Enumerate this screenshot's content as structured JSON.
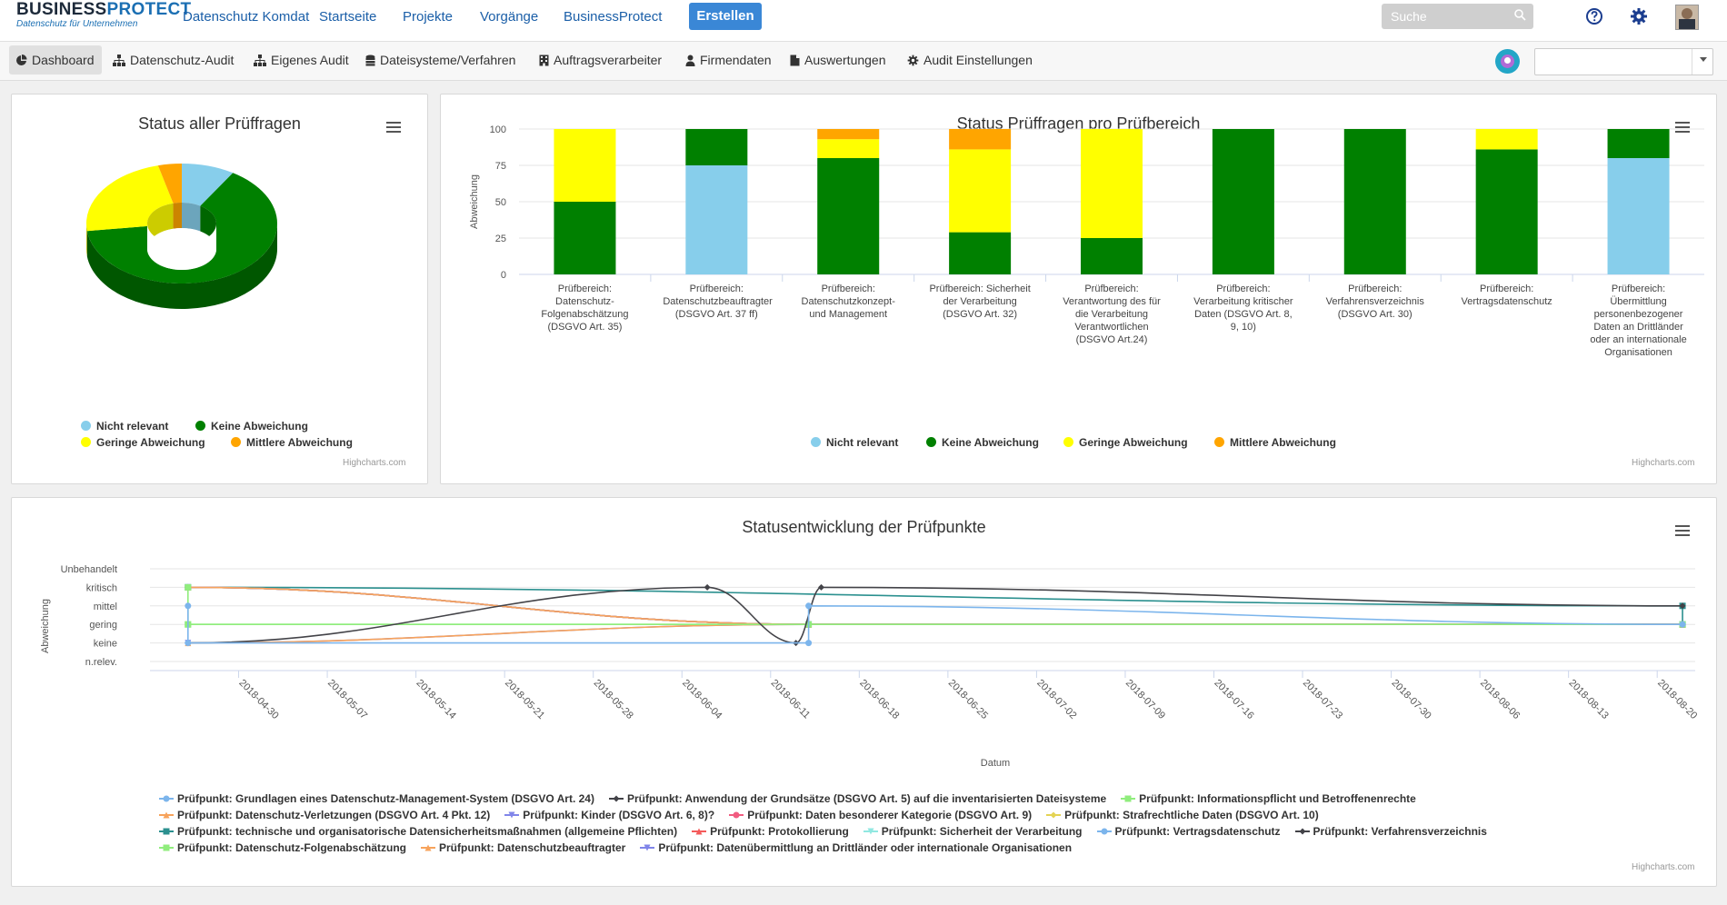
{
  "app": {
    "logo_main_a": "BUSINESS",
    "logo_main_b": "PROTECT",
    "logo_sub": "Datenschutz für Unternehmen"
  },
  "topnav": [
    "Datenschutz Komdat",
    "Startseite",
    "Projekte",
    "Vorgänge",
    "BusinessProtect"
  ],
  "create_label": "Erstellen",
  "search_placeholder": "Suche",
  "subnav": [
    "Dashboard",
    "Datenschutz-Audit",
    "Eigenes Audit",
    "Dateisysteme/Verfahren",
    "Auftragsverarbeiter",
    "Firmendaten",
    "Auswertungen",
    "Audit Einstellungen"
  ],
  "icons": {
    "help": "help-circle-icon",
    "settings": "gear-icon",
    "user": "user-avatar",
    "search": "search-icon"
  },
  "colors": {
    "nicht_relevant": "#87ceeb",
    "keine": "#008000",
    "geringe": "#ffff00",
    "mittlere": "#ffa500",
    "accent": "#3a87d6"
  },
  "credits": "Highcharts.com",
  "chart_data": [
    {
      "type": "pie",
      "title": "Status aller Prüffragen",
      "labels": [
        "Nicht relevant",
        "Keine Abweichung",
        "Geringe Abweichung",
        "Mittlere Abweichung"
      ],
      "values": [
        9,
        64,
        23,
        4
      ],
      "legend": [
        "Nicht relevant",
        "Keine Abweichung",
        "Geringe Abweichung",
        "Mittlere Abweichung"
      ]
    },
    {
      "type": "bar",
      "stacked": true,
      "title": "Status Prüffragen pro Prüfbereich",
      "ylabel": "Abweichung",
      "ylim": [
        0,
        100
      ],
      "yticks": [
        0,
        25,
        50,
        75,
        100
      ],
      "categories": [
        "Prüfbereich: Datenschutz-Folgenabschätzung (DSGVO Art. 35)",
        "Prüfbereich: Datenschutzbeauftragter (DSGVO Art. 37 ff)",
        "Prüfbereich: Datenschutzkonzept- und Management",
        "Prüfbereich: Sicherheit der Verarbeitung (DSGVO Art. 32)",
        "Prüfbereich: Verantwortung des für die Verarbeitung Verantwortlichen (DSGVO Art.24)",
        "Prüfbereich: Verarbeitung kritischer Daten (DSGVO Art. 8, 9, 10)",
        "Prüfbereich: Verfahrensverzeichnis (DSGVO Art. 30)",
        "Prüfbereich: Vertragsdatenschutz",
        "Prüfbereich: Übermittlung personenbezogener Daten an Drittländer oder an internationale Organisationen"
      ],
      "series": [
        {
          "name": "Nicht relevant",
          "values": [
            0,
            75,
            0,
            0,
            0,
            0,
            0,
            0,
            80
          ]
        },
        {
          "name": "Keine Abweichung",
          "values": [
            50,
            25,
            80,
            29,
            25,
            100,
            100,
            86,
            20
          ]
        },
        {
          "name": "Geringe Abweichung",
          "values": [
            50,
            0,
            13,
            57,
            75,
            0,
            0,
            14,
            0
          ]
        },
        {
          "name": "Mittlere Abweichung",
          "values": [
            0,
            0,
            7,
            14,
            0,
            0,
            0,
            0,
            0
          ]
        }
      ]
    },
    {
      "type": "line",
      "title": "Statusentwicklung der Prüfpunkte",
      "ylabel": "Abweichung",
      "xlabel": "Datum",
      "ycategories": [
        "n.relev.",
        "keine",
        "gering",
        "mittel",
        "kritisch",
        "Unbehandelt"
      ],
      "xticks": [
        "2018-04-30",
        "2018-05-07",
        "2018-05-14",
        "2018-05-21",
        "2018-05-28",
        "2018-06-04",
        "2018-06-11",
        "2018-06-18",
        "2018-06-25",
        "2018-07-02",
        "2018-07-09",
        "2018-07-16",
        "2018-07-23",
        "2018-07-30",
        "2018-08-06",
        "2018-08-13",
        "2018-08-20"
      ],
      "series": [
        {
          "name": "Prüfpunkt: Grundlagen eines Datenschutz-Management-System (DSGVO Art. 24)",
          "color": "#7cb5ec",
          "marker": "circle",
          "points": [
            [
              "2018-04-26",
              3
            ],
            [
              "2018-04-26",
              1
            ],
            [
              "2018-06-14",
              1
            ],
            [
              "2018-06-14",
              3
            ],
            [
              "2018-08-22",
              2
            ]
          ]
        },
        {
          "name": "Prüfpunkt: Anwendung der Grundsätze (DSGVO Art. 5) auf die inventarisierten Dateisysteme",
          "color": "#434348",
          "marker": "diamond",
          "points": [
            [
              "2018-04-26",
              1
            ],
            [
              "2018-06-06",
              4
            ],
            [
              "2018-06-13",
              1
            ],
            [
              "2018-06-15",
              4
            ],
            [
              "2018-08-22",
              3
            ]
          ]
        },
        {
          "name": "Prüfpunkt: Informationspflicht und Betroffenenrechte",
          "color": "#90ed7d",
          "marker": "square",
          "points": [
            [
              "2018-04-26",
              4
            ],
            [
              "2018-04-26",
              2
            ],
            [
              "2018-06-14",
              2
            ],
            [
              "2018-08-22",
              2
            ]
          ]
        },
        {
          "name": "Prüfpunkt: Datenschutz-Verletzungen (DSGVO Art. 4 Pkt. 12)",
          "color": "#f7a35c",
          "marker": "triangle",
          "points": [
            [
              "2018-04-26",
              4
            ],
            [
              "2018-06-14",
              2
            ],
            [
              "2018-08-22",
              2
            ]
          ]
        },
        {
          "name": "Prüfpunkt: Kinder (DSGVO Art. 6, 8)?",
          "color": "#8085e9",
          "marker": "triangle-down",
          "points": [
            [
              "2018-04-26",
              4
            ],
            [
              "2018-06-14",
              2
            ],
            [
              "2018-08-22",
              2
            ]
          ]
        },
        {
          "name": "Prüfpunkt: Daten besonderer Kategorie (DSGVO Art. 9)",
          "color": "#f15c80",
          "marker": "circle",
          "points": [
            [
              "2018-04-26",
              4
            ],
            [
              "2018-06-14",
              2
            ],
            [
              "2018-08-22",
              2
            ]
          ]
        },
        {
          "name": "Prüfpunkt: Strafrechtliche Daten (DSGVO Art. 10)",
          "color": "#e4d354",
          "marker": "diamond",
          "points": [
            [
              "2018-04-26",
              4
            ],
            [
              "2018-06-14",
              2
            ],
            [
              "2018-08-22",
              2
            ]
          ]
        },
        {
          "name": "Prüfpunkt: technische und organisatorische Datensicherheitsmaßnahmen (allgemeine Pflichten)",
          "color": "#2b908f",
          "marker": "square",
          "points": [
            [
              "2018-04-26",
              4
            ],
            [
              "2018-08-22",
              3
            ],
            [
              "2018-08-22",
              2
            ]
          ]
        },
        {
          "name": "Prüfpunkt: Protokollierung",
          "color": "#f45b5b",
          "marker": "triangle",
          "points": [
            [
              "2018-04-26",
              4
            ],
            [
              "2018-06-14",
              2
            ],
            [
              "2018-08-22",
              2
            ]
          ]
        },
        {
          "name": "Prüfpunkt: Sicherheit der Verarbeitung",
          "color": "#91e8e1",
          "marker": "triangle-down",
          "points": [
            [
              "2018-04-26",
              4
            ],
            [
              "2018-06-14",
              2
            ],
            [
              "2018-08-22",
              2
            ]
          ]
        },
        {
          "name": "Prüfpunkt: Vertragsdatenschutz",
          "color": "#7cb5ec",
          "marker": "circle",
          "points": [
            [
              "2018-04-26",
              4
            ],
            [
              "2018-06-14",
              2
            ],
            [
              "2018-08-22",
              2
            ]
          ]
        },
        {
          "name": "Prüfpunkt: Verfahrensverzeichnis",
          "color": "#434348",
          "marker": "diamond",
          "points": [
            [
              "2018-04-26",
              4
            ],
            [
              "2018-06-14",
              2
            ],
            [
              "2018-08-22",
              2
            ]
          ]
        },
        {
          "name": "Prüfpunkt: Datenschutz-Folgenabschätzung",
          "color": "#90ed7d",
          "marker": "square",
          "points": [
            [
              "2018-04-26",
              2
            ],
            [
              "2018-06-14",
              2
            ],
            [
              "2018-08-22",
              2
            ]
          ]
        },
        {
          "name": "Prüfpunkt: Datenschutzbeauftragter",
          "color": "#f7a35c",
          "marker": "triangle",
          "points": [
            [
              "2018-04-26",
              1
            ],
            [
              "2018-06-14",
              2
            ],
            [
              "2018-08-22",
              2
            ]
          ]
        },
        {
          "name": "Prüfpunkt: Datenübermittlung an Drittländer oder internationale Organisationen",
          "color": "#8085e9",
          "marker": "triangle-down",
          "points": [
            [
              "2018-04-26",
              1
            ],
            [
              "2018-06-14",
              2
            ],
            [
              "2018-08-22",
              2
            ]
          ]
        }
      ]
    }
  ]
}
